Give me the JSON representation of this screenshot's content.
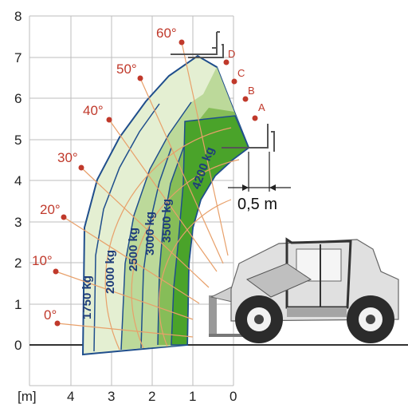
{
  "diagram": {
    "x_axis_unit": "[m]",
    "x_ticks": [
      "4",
      "3",
      "2",
      "1",
      "0"
    ],
    "y_ticks": [
      "0",
      "1",
      "2",
      "3",
      "4",
      "5",
      "6",
      "7",
      "8"
    ],
    "angles": [
      "0°",
      "10°",
      "20°",
      "30°",
      "40°",
      "50°",
      "60°"
    ],
    "positions": [
      "A",
      "B",
      "C",
      "D"
    ],
    "capacities": [
      "1750 kg",
      "2000 kg",
      "2500 kg",
      "3000 kg",
      "3500 kg",
      "4200 kg"
    ],
    "offset_label": "0,5 m",
    "colors": {
      "grid": "#bdbdbd",
      "arc": "#e8a06a",
      "angle_text": "#c0392b",
      "outline": "#1f4e8c",
      "zone_light": "#e4efd2",
      "zone_mid": "#bcd99a",
      "zone_dark": "#86bd58",
      "zone_core": "#4aa32a"
    }
  }
}
